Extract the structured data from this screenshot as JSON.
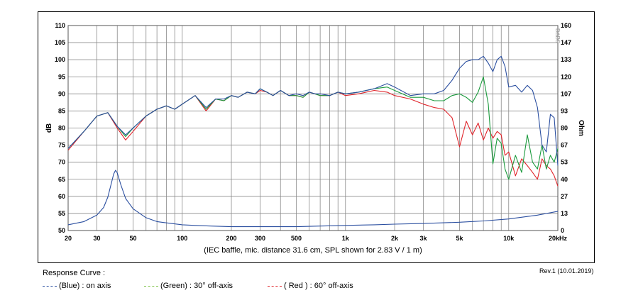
{
  "chart_data": {
    "type": "line",
    "xlabel": "(IEC baffle, mic. distance 31.6 cm, SPL shown for 2.83 V / 1 m)",
    "ylabel": "dB",
    "y2label": "Ohm",
    "x_scale": "log",
    "xlim": [
      20,
      20000
    ],
    "ylim": [
      50,
      110
    ],
    "y2lim": [
      0,
      160
    ],
    "x_ticks": [
      {
        "value": 20,
        "label": "20"
      },
      {
        "value": 30,
        "label": "30"
      },
      {
        "value": 50,
        "label": "50"
      },
      {
        "value": 100,
        "label": "100"
      },
      {
        "value": 200,
        "label": "200"
      },
      {
        "value": 300,
        "label": "300"
      },
      {
        "value": 500,
        "label": "500"
      },
      {
        "value": 1000,
        "label": "1k"
      },
      {
        "value": 2000,
        "label": "2k"
      },
      {
        "value": 3000,
        "label": "3k"
      },
      {
        "value": 5000,
        "label": "5k"
      },
      {
        "value": 10000,
        "label": "10k"
      },
      {
        "value": 20000,
        "label": "20kHz"
      }
    ],
    "y_ticks": [
      "50",
      "55",
      "60",
      "65",
      "70",
      "75",
      "80",
      "85",
      "90",
      "95",
      "100",
      "105",
      "110"
    ],
    "y2_ticks": [
      "0",
      "13",
      "27",
      "40",
      "53",
      "67",
      "80",
      "93",
      "107",
      "120",
      "133",
      "147",
      "160"
    ],
    "grid": true,
    "watermark": "D∆BS",
    "series": [
      {
        "name": "(Blue) : on axis",
        "color": "#2b4fa0",
        "x": [
          20,
          25,
          30,
          35,
          40,
          45,
          50,
          60,
          70,
          80,
          90,
          100,
          120,
          140,
          160,
          180,
          200,
          220,
          250,
          280,
          300,
          330,
          360,
          400,
          450,
          500,
          550,
          600,
          650,
          700,
          800,
          900,
          1000,
          1200,
          1500,
          1800,
          2000,
          2500,
          3000,
          3500,
          4000,
          4500,
          5000,
          5500,
          6000,
          6500,
          7000,
          7500,
          8000,
          8500,
          9000,
          9500,
          10000,
          11000,
          12000,
          13000,
          14000,
          15000,
          16000,
          17000,
          18000,
          19000,
          20000
        ],
        "values": [
          74,
          79,
          83.5,
          84.5,
          80.5,
          78,
          80,
          83.5,
          85.5,
          86.5,
          85.5,
          87,
          89.5,
          86,
          88.5,
          88.5,
          89.5,
          89,
          90.5,
          90,
          91.5,
          90.5,
          89.5,
          91,
          89.5,
          90,
          89.5,
          90.5,
          90,
          90,
          89.5,
          90.5,
          90,
          90.5,
          91.5,
          93,
          92,
          89.5,
          90,
          90,
          91,
          94,
          97.5,
          99.5,
          100,
          100,
          101,
          99,
          96.5,
          100,
          101,
          98,
          92,
          92.5,
          90.5,
          92.5,
          91,
          86,
          75,
          73,
          84,
          83,
          69
        ]
      },
      {
        "name": "(Green) : 30° off-axis",
        "color": "#1a9a3c",
        "x": [
          20,
          25,
          30,
          35,
          40,
          45,
          50,
          60,
          70,
          80,
          90,
          100,
          120,
          140,
          160,
          180,
          200,
          220,
          250,
          280,
          300,
          330,
          360,
          400,
          450,
          500,
          550,
          600,
          650,
          700,
          800,
          900,
          1000,
          1200,
          1500,
          1800,
          2000,
          2500,
          3000,
          3500,
          4000,
          4500,
          5000,
          5500,
          6000,
          6500,
          7000,
          7500,
          8000,
          8500,
          9000,
          9500,
          10000,
          11000,
          12000,
          13000,
          14000,
          15000,
          16000,
          17000,
          18000,
          19000,
          20000
        ],
        "values": [
          74,
          79,
          83.5,
          84.5,
          80.5,
          77.5,
          80,
          83.5,
          85.5,
          86.5,
          85.5,
          87,
          89.5,
          85.5,
          88.5,
          88,
          89.5,
          89,
          90.5,
          90,
          91.5,
          90.5,
          89.5,
          91,
          89.5,
          89.5,
          89,
          90.5,
          90,
          89.5,
          89.5,
          90.5,
          90,
          90.5,
          91.5,
          92,
          91,
          89,
          89,
          88,
          88,
          89.5,
          90,
          89,
          87.5,
          90.5,
          95,
          87,
          69.5,
          77,
          75.5,
          68,
          65,
          72,
          67,
          78,
          70,
          68,
          75,
          68,
          72,
          70,
          74
        ]
      },
      {
        "name": "( Red ) : 60° off-axis",
        "color": "#e0242a",
        "x": [
          20,
          25,
          30,
          35,
          40,
          45,
          50,
          60,
          70,
          80,
          90,
          100,
          120,
          140,
          160,
          180,
          200,
          220,
          250,
          280,
          300,
          330,
          360,
          400,
          450,
          500,
          550,
          600,
          650,
          700,
          800,
          900,
          1000,
          1200,
          1500,
          1800,
          2000,
          2500,
          3000,
          3500,
          4000,
          4500,
          5000,
          5500,
          6000,
          6500,
          7000,
          7500,
          8000,
          8500,
          9000,
          9500,
          10000,
          11000,
          12000,
          13000,
          14000,
          15000,
          16000,
          17000,
          18000,
          19000,
          20000
        ],
        "values": [
          73.5,
          79,
          83.5,
          84.5,
          80,
          76.5,
          79,
          83.5,
          85.5,
          86.5,
          85.5,
          87,
          89.5,
          85,
          88.5,
          88,
          89.5,
          89,
          90.5,
          90,
          91,
          90.5,
          89.5,
          91,
          89.5,
          89.5,
          89,
          90.5,
          90,
          89.5,
          89.5,
          90.5,
          89.5,
          90,
          91,
          90.5,
          89.5,
          88.5,
          87,
          86,
          85.5,
          83,
          74.5,
          82,
          78,
          81.5,
          76.5,
          80,
          77,
          79,
          78,
          72,
          73,
          66,
          71,
          69,
          67,
          65,
          71,
          69,
          68,
          66,
          63
        ]
      },
      {
        "name": "Impedance",
        "color": "#2b4fa0",
        "axis": "right",
        "x": [
          20,
          25,
          30,
          33,
          35,
          37,
          38,
          39,
          40,
          42,
          45,
          50,
          60,
          70,
          80,
          100,
          120,
          150,
          200,
          250,
          300,
          400,
          500,
          700,
          1000,
          1500,
          2000,
          3000,
          5000,
          7000,
          10000,
          15000,
          20000
        ],
        "values": [
          4.5,
          7,
          12,
          18,
          26,
          38,
          44,
          47,
          45,
          36,
          25,
          17,
          10,
          7,
          6,
          4.5,
          4,
          3.5,
          3,
          3,
          3,
          3,
          3,
          3.5,
          4,
          4.5,
          5,
          5.5,
          6.5,
          7.5,
          9,
          12,
          15
        ]
      }
    ]
  },
  "legend": {
    "title": "Response Curve :",
    "items": [
      {
        "label": "(Blue)  : on axis",
        "color": "#2b4fa0"
      },
      {
        "label": "(Green) : 30° off-axis",
        "color": "#1a9a3c"
      },
      {
        "label": "( Red ) : 60° off-axis",
        "color": "#e0242a"
      }
    ]
  },
  "revision": "Rev.1 (10.01.2019)"
}
